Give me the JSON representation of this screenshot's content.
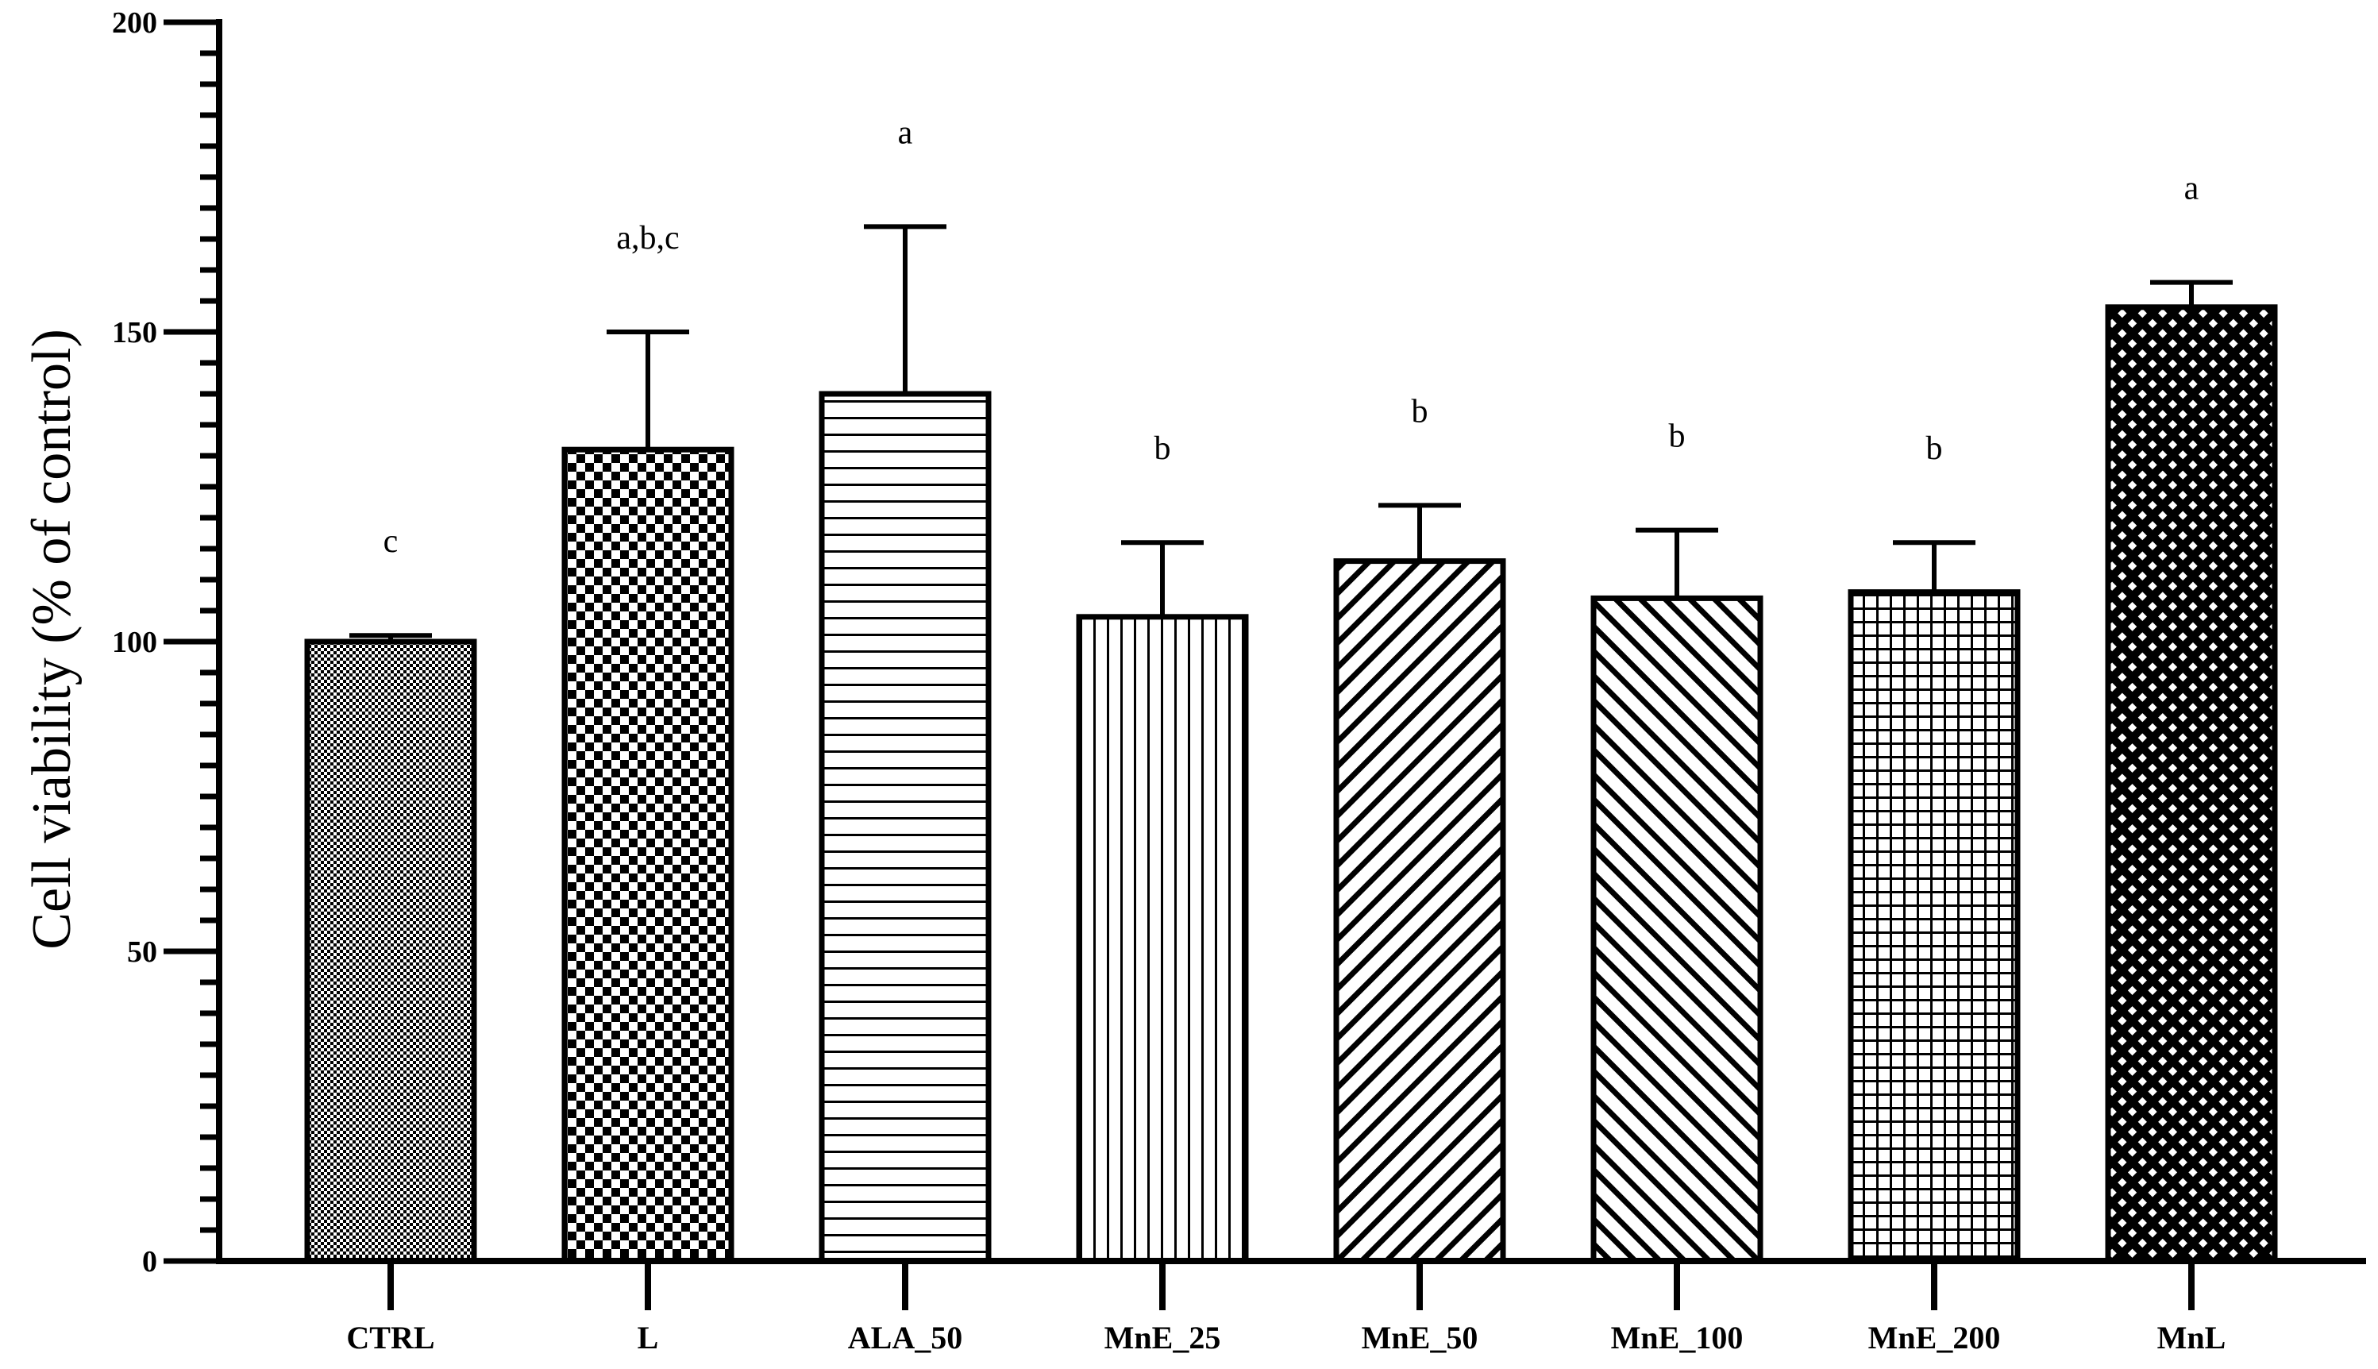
{
  "chart_data": {
    "type": "bar",
    "title": "",
    "xlabel": "",
    "ylabel": "Cell viability (% of control)",
    "ylim": [
      0,
      200
    ],
    "y_major_ticks": [
      0,
      50,
      100,
      150,
      200
    ],
    "y_minor_step": 5,
    "grid": false,
    "categories": [
      "CTRL",
      "L",
      "ALA_50",
      "MnE_25",
      "MnE_50",
      "MnE_100",
      "MnE_200",
      "MnL"
    ],
    "values": [
      100,
      131,
      140,
      104,
      113,
      107,
      108,
      154
    ],
    "error_upper": [
      101,
      150,
      167,
      116,
      122,
      118,
      116,
      158
    ],
    "significance_labels": [
      "c",
      "a,b,c",
      "a",
      "b",
      "b",
      "b",
      "b",
      "a"
    ],
    "fill_patterns": [
      "fine-dots",
      "checkerboard",
      "horizontal-lines",
      "vertical-lines",
      "diagonal-lines-up",
      "diagonal-lines-down",
      "grid",
      "diamond-crosshatch"
    ]
  }
}
